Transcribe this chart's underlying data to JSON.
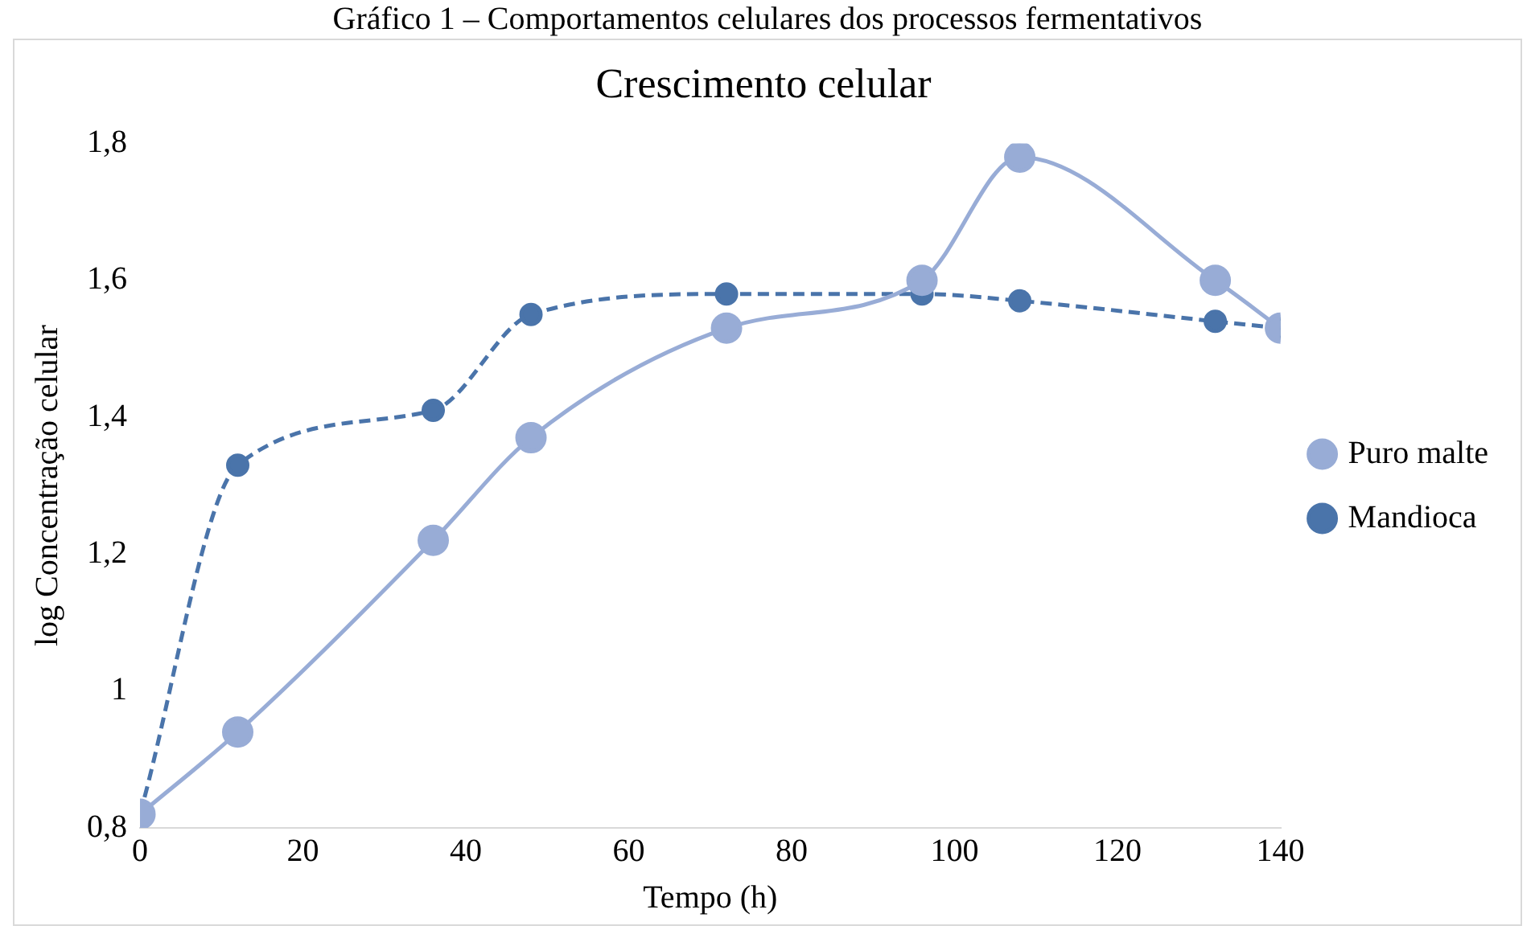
{
  "chart_data": {
    "type": "line",
    "title": "Crescimento celular",
    "xlabel": "Tempo (h)",
    "ylabel": "log Concentração celular",
    "annotations": [
      "Gráfico 1 – Comportamentos celulares dos processos fermentativos"
    ],
    "x": [
      0,
      12,
      36,
      48,
      72,
      96,
      108,
      132,
      140
    ],
    "series": [
      {
        "name": "Mandioca",
        "color": "#4a74aa",
        "line_style": "dashed",
        "values": [
          0.82,
          1.33,
          1.41,
          1.55,
          1.58,
          1.58,
          1.57,
          1.54,
          1.53
        ]
      },
      {
        "name": "Puro malte",
        "color": "#98acd6",
        "line_style": "solid",
        "values": [
          0.82,
          0.94,
          1.22,
          1.37,
          1.53,
          1.6,
          1.78,
          1.6,
          1.53
        ]
      }
    ],
    "xlim": [
      0,
      140
    ],
    "xticks": [
      0,
      20,
      40,
      60,
      80,
      100,
      120,
      140
    ],
    "ylim": [
      0.8,
      1.8
    ],
    "yticks": [
      {
        "value": 0.8,
        "label": "0,8"
      },
      1,
      {
        "value": 1.2,
        "label": "1,2"
      },
      {
        "value": 1.4,
        "label": "1,4"
      },
      {
        "value": 1.6,
        "label": "1,6"
      },
      {
        "value": 1.8,
        "label": "1,8"
      }
    ],
    "grid": false,
    "legend": "right",
    "marker": "circle"
  }
}
